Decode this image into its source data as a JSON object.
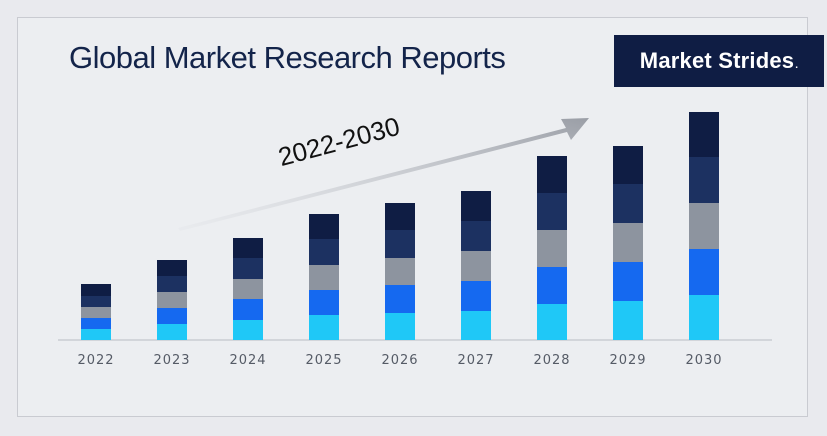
{
  "header": {
    "title": "Global Market Research Reports",
    "brand_text": "Market Strides",
    "brand_mark": "."
  },
  "annotation": {
    "period": "2022-2030",
    "arrow_icon": "trend-arrow-icon"
  },
  "colors": {
    "segment_1": "#1fc8f7",
    "segment_2": "#1569f0",
    "segment_3": "#8d949f",
    "segment_4": "#1c3161",
    "segment_5": "#0f1d44",
    "brand_bg": "#0f1d44",
    "title": "#13244a"
  },
  "chart_data": {
    "type": "bar",
    "stacked": true,
    "categories": [
      "2022",
      "2023",
      "2024",
      "2025",
      "2026",
      "2027",
      "2028",
      "2029",
      "2030"
    ],
    "series": [
      {
        "values": [
          11,
          16,
          20,
          25,
          27,
          29,
          36,
          39,
          45
        ]
      },
      {
        "values": [
          11,
          16,
          21,
          25,
          28,
          30,
          37,
          39,
          46
        ]
      },
      {
        "values": [
          11,
          16,
          20,
          25,
          27,
          30,
          37,
          39,
          46
        ]
      },
      {
        "values": [
          11,
          16,
          21,
          26,
          28,
          30,
          37,
          39,
          46
        ]
      },
      {
        "values": [
          12,
          16,
          20,
          25,
          27,
          30,
          37,
          38,
          45
        ]
      }
    ],
    "ylim": [
      0,
      240
    ],
    "grid": false,
    "legend": "none",
    "xlabel": "",
    "ylabel": ""
  }
}
